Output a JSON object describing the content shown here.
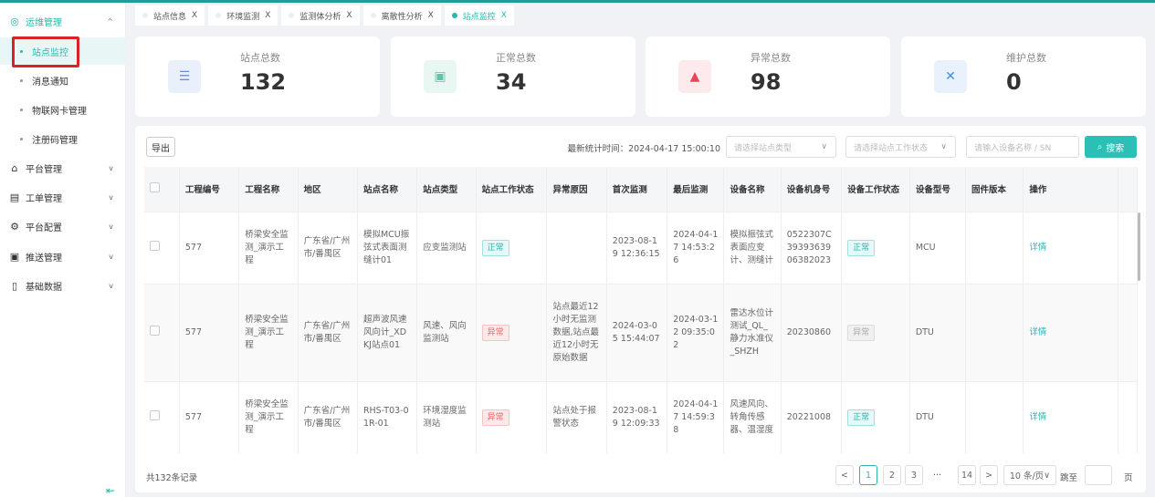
{
  "colors": {
    "accent": "#2bb5ae",
    "highlight_box": "#d9232a",
    "error": "#ee6666"
  },
  "sidebar": {
    "group": {
      "label": "运维管理",
      "icon": "gear-circle-icon",
      "expanded": true
    },
    "sub_items": [
      {
        "label": "站点监控",
        "active": true
      },
      {
        "label": "消息通知"
      },
      {
        "label": "物联网卡管理"
      },
      {
        "label": "注册码管理"
      }
    ],
    "items": [
      {
        "label": "平台管理",
        "icon": "building-icon"
      },
      {
        "label": "工单管理",
        "icon": "calendar-icon"
      },
      {
        "label": "平台配置",
        "icon": "settings-icon"
      },
      {
        "label": "推送管理",
        "icon": "push-icon"
      },
      {
        "label": "基础数据",
        "icon": "clipboard-icon"
      }
    ],
    "collapse_icon": "collapse-menu-icon"
  },
  "tabs": [
    {
      "label": "站点信息"
    },
    {
      "label": "环境监测"
    },
    {
      "label": "监测体分析"
    },
    {
      "label": "离散性分析"
    },
    {
      "label": "站点监控",
      "active": true
    }
  ],
  "cards": [
    {
      "label": "站点总数",
      "value": "132",
      "icon": "server-icon"
    },
    {
      "label": "正常总数",
      "value": "34",
      "icon": "check-box-icon"
    },
    {
      "label": "异常总数",
      "value": "98",
      "icon": "warning-icon"
    },
    {
      "label": "维护总数",
      "value": "0",
      "icon": "tools-icon"
    }
  ],
  "toolbar": {
    "export": "导出",
    "stat_time": "最新统计时间：2024-04-17 15:00:10",
    "site_type_placeholder": "请选择站点类型",
    "site_status_placeholder": "请选择站点工作状态",
    "device_placeholder": "请输入设备名称 / SN",
    "search": "搜索"
  },
  "table": {
    "headers": [
      "工程编号",
      "工程名称",
      "地区",
      "站点名称",
      "站点类型",
      "站点工作状态",
      "异常原因",
      "首次监测",
      "最后监测",
      "设备名称",
      "设备机身号",
      "设备工作状态",
      "设备型号",
      "固件版本",
      "操作"
    ],
    "rows": [
      [
        "577",
        "桥梁安全监测_演示工程",
        "广东省/广州市/番禺区",
        "模拟MCU振弦式表面测缝计01",
        "应变监测站",
        "正常",
        "",
        "2023-08-19 12:36:15",
        "2024-04-17 14:53:26",
        "模拟振弦式表面应变计、测缝计",
        "0522307C3939363906382023",
        "正常",
        "MCU",
        "",
        "详情"
      ],
      [
        "577",
        "桥梁安全监测_演示工程",
        "广东省/广州市/番禺区",
        "超声波风速风向计_XDKJ站点01",
        "风速、风向监测站",
        "异常",
        "站点最近12小时无监测数据,站点最近12小时无原始数据",
        "2024-03-05 15:44:07",
        "2024-03-12 09:35:02",
        "雷达水位计测试_QL_静力水准仪_SHZH",
        "20230860",
        "异常",
        "DTU",
        "",
        "详情"
      ],
      [
        "577",
        "桥梁安全监测_演示工程",
        "广东省/广州市/番禺区",
        "RHS-T03-01R-01",
        "环境湿度监测站",
        "异常",
        "站点处于报警状态",
        "2023-08-19 12:09:33",
        "2024-04-17 14:59:38",
        "风速风向、转角传感器、温湿度",
        "20221008",
        "正常",
        "DTU",
        "",
        "详情"
      ]
    ]
  },
  "footer": {
    "total": "共132条记录",
    "pages": [
      "1",
      "2",
      "3",
      "14"
    ],
    "current_page": "1",
    "ellipsis": "···",
    "page_size": "10 条/页",
    "goto": "跳至",
    "page_unit": "页"
  }
}
